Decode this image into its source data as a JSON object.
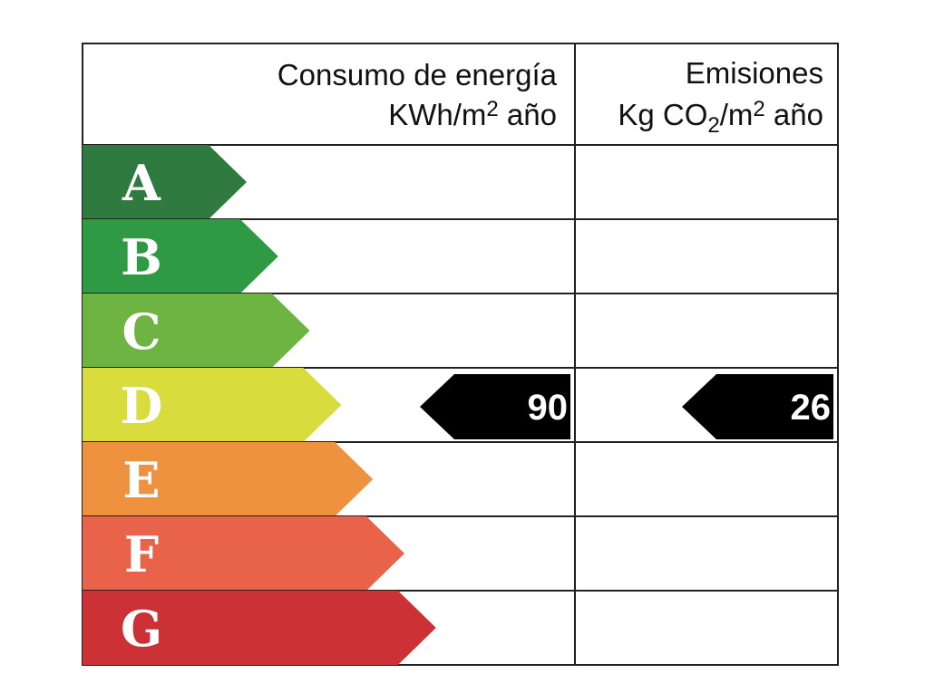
{
  "header": {
    "energy_title": "Consumo de energía",
    "energy_unit": [
      "KWh/m",
      "2",
      " año"
    ],
    "emissions_title": "Emisiones",
    "emissions_unit": [
      "Kg CO",
      "2",
      "/m",
      "2",
      " año"
    ]
  },
  "rows": [
    {
      "letter": "A",
      "color": "#2f7a3e"
    },
    {
      "letter": "B",
      "color": "#2e9a44"
    },
    {
      "letter": "C",
      "color": "#6db443"
    },
    {
      "letter": "D",
      "color": "#d8dc3c",
      "energy": 90,
      "emissions": 26
    },
    {
      "letter": "E",
      "color": "#ee9240"
    },
    {
      "letter": "F",
      "color": "#e9634b"
    },
    {
      "letter": "G",
      "color": "#cc3136"
    }
  ]
}
